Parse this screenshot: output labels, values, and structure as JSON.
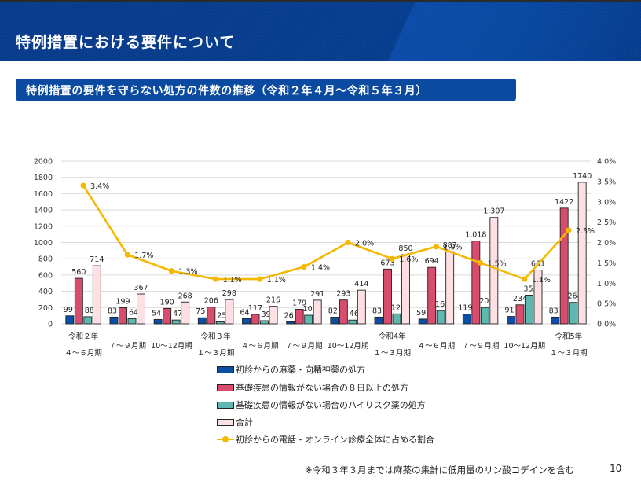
{
  "header": {
    "title": "特例措置における要件について"
  },
  "subtitle": "特例措置の要件を守らない処方の件数の推移（令和２年４月～令和５年３月）",
  "chart_data": {
    "type": "bar",
    "title": "特例措置の要件を守らない処方の件数の推移（令和２年４月～令和５年３月）",
    "categories": [
      {
        "line1": "令和２年",
        "line2": "４～６月期"
      },
      {
        "line1": "",
        "line2": "７～９月期"
      },
      {
        "line1": "",
        "line2": "10～12月期"
      },
      {
        "line1": "令和３年",
        "line2": "１～３月期"
      },
      {
        "line1": "",
        "line2": "４～６月期"
      },
      {
        "line1": "",
        "line2": "７～９月期"
      },
      {
        "line1": "",
        "line2": "10～12月期"
      },
      {
        "line1": "令和4年",
        "line2": "１～３月期"
      },
      {
        "line1": "",
        "line2": "４～６月期"
      },
      {
        "line1": "",
        "line2": "７～９月期"
      },
      {
        "line1": "",
        "line2": "10～12月期"
      },
      {
        "line1": "令和5年",
        "line2": "１～３月期"
      }
    ],
    "series": [
      {
        "name": "初診からの麻薬・向精神薬の処方",
        "type": "bar",
        "axis": "left",
        "color": "#0a4ea6",
        "values": [
          99,
          83,
          54,
          75,
          64,
          26,
          82,
          83,
          59,
          119,
          91,
          83
        ],
        "labels": [
          "99",
          "83",
          "54",
          "75",
          "64",
          "26",
          "82",
          "83",
          "59",
          "119",
          "91",
          "83"
        ]
      },
      {
        "name": "基礎疾患の情報がない場合の８日以上の処方",
        "type": "bar",
        "axis": "left",
        "color": "#d84c6e",
        "values": [
          560,
          199,
          190,
          206,
          117,
          179,
          293,
          673,
          694,
          1018,
          234,
          1422
        ],
        "labels": [
          "560",
          "199",
          "190",
          "206",
          "117",
          "179",
          "293",
          "673",
          "694",
          "1,018",
          "234",
          "1422"
        ]
      },
      {
        "name": "基礎疾患の情報がない場合のハイリスク薬の処方",
        "type": "bar",
        "axis": "left",
        "color": "#5fb8b0",
        "values": [
          88,
          64,
          47,
          25,
          39,
          106,
          46,
          123,
          163,
          201,
          353,
          264
        ],
        "labels": [
          "88",
          "64",
          "47",
          "25",
          "39",
          "106",
          "46",
          "123",
          "163",
          "201",
          "353",
          "264"
        ]
      },
      {
        "name": "合計",
        "type": "bar",
        "axis": "left",
        "color": "#fde0e4",
        "values": [
          714,
          367,
          268,
          298,
          216,
          291,
          414,
          850,
          887,
          1307,
          661,
          1740
        ],
        "labels": [
          "714",
          "367",
          "268",
          "298",
          "216",
          "291",
          "414",
          "850",
          "887",
          "1,307",
          "661",
          "1740"
        ]
      },
      {
        "name": "初診からの電話・オンライン診療全体に占める割合",
        "type": "line",
        "axis": "right",
        "color": "#f5b800",
        "values": [
          3.4,
          1.7,
          1.3,
          1.1,
          1.1,
          1.4,
          2.0,
          1.6,
          1.9,
          1.5,
          1.1,
          2.3
        ],
        "labels": [
          "3.4%",
          "1.7%",
          "1.3%",
          "1.1%",
          "1.1%",
          "1.4%",
          "2.0%",
          "1.6%",
          "1.9%",
          "1.5%",
          "1.1%",
          "2.3%"
        ]
      }
    ],
    "ylim": [
      0,
      2000
    ],
    "yticks": [
      "0",
      "200",
      "400",
      "600",
      "800",
      "1000",
      "1200",
      "1400",
      "1600",
      "1800",
      "2000"
    ],
    "y2lim": [
      0,
      4.0
    ],
    "y2ticks": [
      "0.0%",
      "0.5%",
      "1.0%",
      "1.5%",
      "2.0%",
      "2.5%",
      "3.0%",
      "3.5%",
      "4.0%"
    ],
    "xlabel": "",
    "ylabel": "",
    "y2label": "",
    "grid": true,
    "legend_position": "bottom"
  },
  "footnote": "※令和３年３月までは麻薬の集計に低用量のリン酸コデインを含む",
  "page_number": "10"
}
